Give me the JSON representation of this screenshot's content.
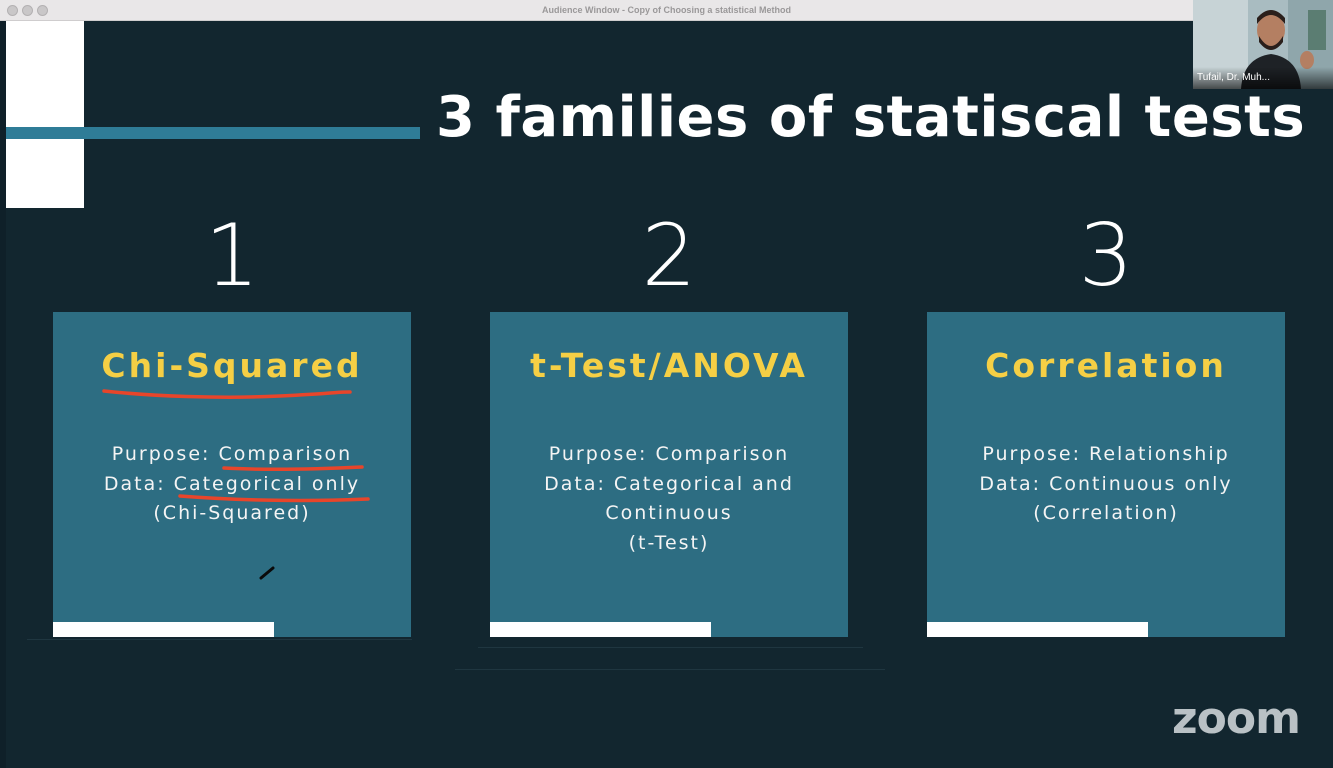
{
  "window": {
    "title": "Audience Window - Copy of Choosing a statistical Method"
  },
  "slide": {
    "title": "3 families of statiscal tests",
    "columns": [
      {
        "number": "1",
        "heading": "Chi-Squared",
        "purpose": "Purpose: Comparison",
        "data": "Data: Categorical only",
        "line3": "(Chi-Squared)",
        "line4": ""
      },
      {
        "number": "2",
        "heading": "t-Test/ANOVA",
        "purpose": "Purpose: Comparison",
        "data": "Data: Categorical and",
        "line3": "Continuous",
        "line4": "(t-Test)"
      },
      {
        "number": "3",
        "heading": "Correlation",
        "purpose": "Purpose: Relationship",
        "data": "Data: Continuous only",
        "line3": "(Correlation)",
        "line4": ""
      }
    ]
  },
  "participant": {
    "name": "Tufail, Dr. Muh..."
  },
  "brand": {
    "logo_text": "zoom"
  },
  "colors": {
    "background": "#12262f",
    "card": "#2d6d82",
    "heading": "#f5cf45",
    "annotation": "#e8452a"
  }
}
